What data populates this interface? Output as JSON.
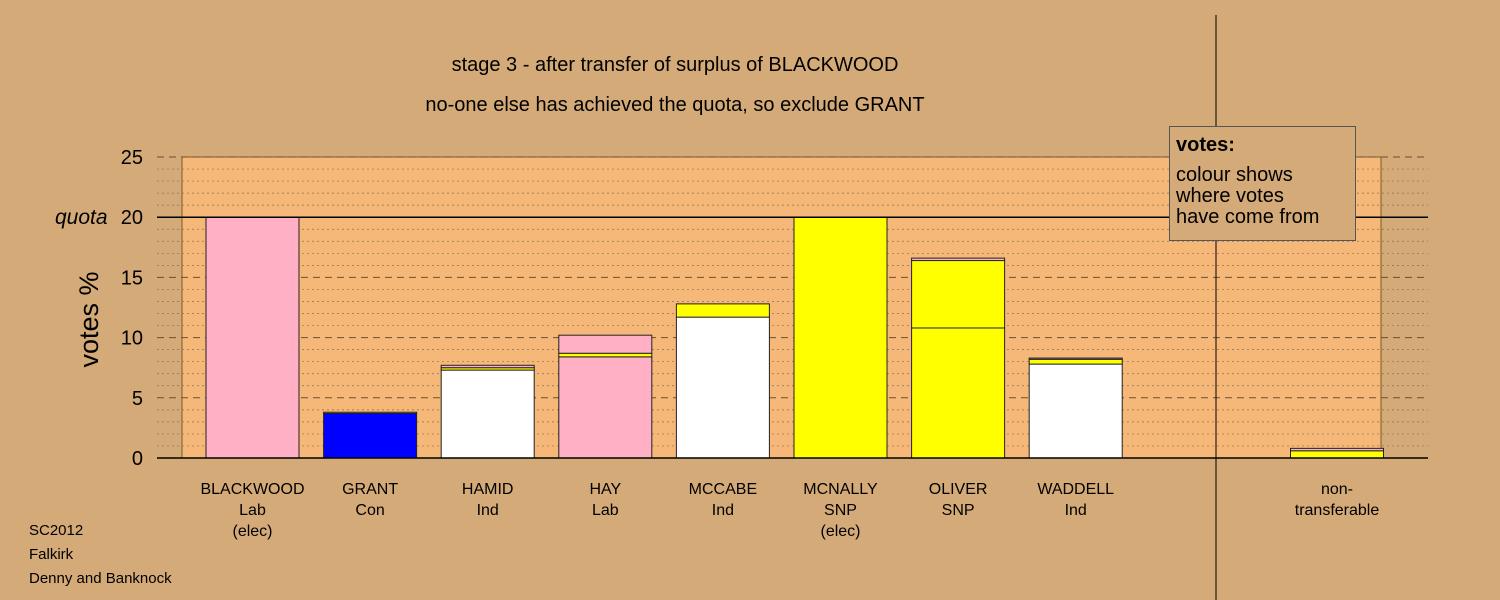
{
  "title_line1": "stage 3 - after transfer of surplus of BLACKWOOD",
  "title_line2": "no-one else has achieved the quota, so exclude GRANT",
  "legend": {
    "heading": "votes:",
    "lines": [
      "colour shows",
      "where votes",
      "have come from"
    ]
  },
  "footer": [
    "SC2012",
    "Falkirk",
    "Denny and Banknock"
  ],
  "colors": {
    "background": "#d4aa78",
    "plot_area": "#f6b878",
    "Lab": "#ffb0c4",
    "Con": "#0000ff",
    "Ind": "#ffffff",
    "SNP": "#ffff00",
    "outline": "#7a5a2a"
  },
  "chart_data": {
    "type": "bar",
    "stacked": true,
    "ylabel": "votes %",
    "ylim": [
      0,
      25
    ],
    "yticks": [
      0,
      5,
      10,
      15,
      20,
      25
    ],
    "quota": 20,
    "quota_label": "quota",
    "grid": true,
    "legend_position": "top-right",
    "categories": [
      {
        "name": "BLACKWOOD",
        "party": "Lab",
        "note": "(elec)",
        "segments": [
          {
            "from": "Lab",
            "value": 20.0
          }
        ]
      },
      {
        "name": "GRANT",
        "party": "Con",
        "note": "",
        "segments": [
          {
            "from": "Con",
            "value": 3.7
          },
          {
            "from": "Lab",
            "value": 0.1
          }
        ]
      },
      {
        "name": "HAMID",
        "party": "Ind",
        "note": "",
        "segments": [
          {
            "from": "Ind",
            "value": 7.3
          },
          {
            "from": "SNP",
            "value": 0.2
          },
          {
            "from": "Lab",
            "value": 0.2
          }
        ]
      },
      {
        "name": "HAY",
        "party": "Lab",
        "note": "",
        "segments": [
          {
            "from": "Lab",
            "value": 8.4
          },
          {
            "from": "SNP",
            "value": 0.3
          },
          {
            "from": "Lab",
            "value": 1.5
          }
        ]
      },
      {
        "name": "MCCABE",
        "party": "Ind",
        "note": "",
        "segments": [
          {
            "from": "Ind",
            "value": 11.7
          },
          {
            "from": "SNP",
            "value": 1.1
          }
        ]
      },
      {
        "name": "MCNALLY",
        "party": "SNP",
        "note": "(elec)",
        "segments": [
          {
            "from": "SNP",
            "value": 20.0
          }
        ]
      },
      {
        "name": "OLIVER",
        "party": "SNP",
        "note": "",
        "segments": [
          {
            "from": "SNP",
            "value": 10.8
          },
          {
            "from": "SNP",
            "value": 5.6
          },
          {
            "from": "Lab",
            "value": 0.2
          }
        ]
      },
      {
        "name": "WADDELL",
        "party": "Ind",
        "note": "",
        "segments": [
          {
            "from": "Ind",
            "value": 7.8
          },
          {
            "from": "SNP",
            "value": 0.4
          },
          {
            "from": "Lab",
            "value": 0.1
          }
        ]
      }
    ],
    "non_transferable": {
      "label_lines": [
        "non-",
        "transferable"
      ],
      "segments": [
        {
          "from": "SNP",
          "value": 0.6
        },
        {
          "from": "Lab",
          "value": 0.2
        }
      ]
    }
  }
}
